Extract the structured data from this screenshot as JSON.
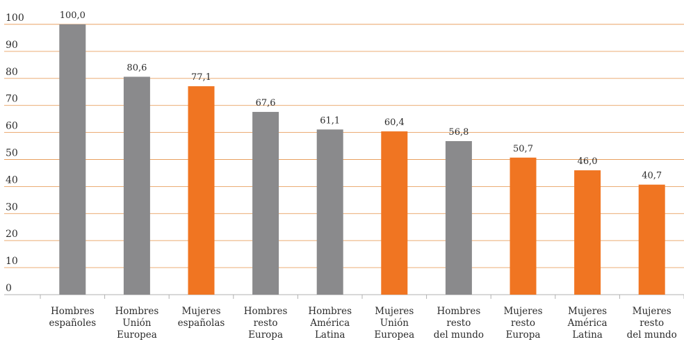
{
  "chart_data": {
    "type": "bar",
    "title": "",
    "xlabel": "",
    "ylabel": "",
    "ylim": [
      0,
      100
    ],
    "yticks": [
      0,
      10,
      20,
      30,
      40,
      50,
      60,
      70,
      80,
      90,
      100
    ],
    "grid": true,
    "colors": {
      "hombres": "#8a8a8c",
      "mujeres": "#f07522",
      "grid": "#e8a060"
    },
    "categories": [
      [
        "Hombres",
        "españoles"
      ],
      [
        "Hombres",
        "Unión",
        "Europea"
      ],
      [
        "Mujeres",
        "españolas"
      ],
      [
        "Hombres",
        "resto",
        "Europa"
      ],
      [
        "Hombres",
        "América",
        "Latina"
      ],
      [
        "Mujeres",
        "Unión",
        "Europea"
      ],
      [
        "Hombres",
        "resto",
        "del mundo"
      ],
      [
        "Mujeres",
        "resto",
        "Europa"
      ],
      [
        "Mujeres",
        "América",
        "Latina"
      ],
      [
        "Mujeres",
        "resto",
        "del mundo"
      ]
    ],
    "values": [
      100.0,
      80.6,
      77.1,
      67.6,
      61.1,
      60.4,
      56.8,
      50.7,
      46.0,
      40.7
    ],
    "value_labels": [
      "100,0",
      "80,6",
      "77,1",
      "67,6",
      "61,1",
      "60,4",
      "56,8",
      "50,7",
      "46,0",
      "40,7"
    ],
    "bar_colors": [
      "hombres",
      "hombres",
      "mujeres",
      "hombres",
      "hombres",
      "mujeres",
      "hombres",
      "mujeres",
      "mujeres",
      "mujeres"
    ]
  }
}
